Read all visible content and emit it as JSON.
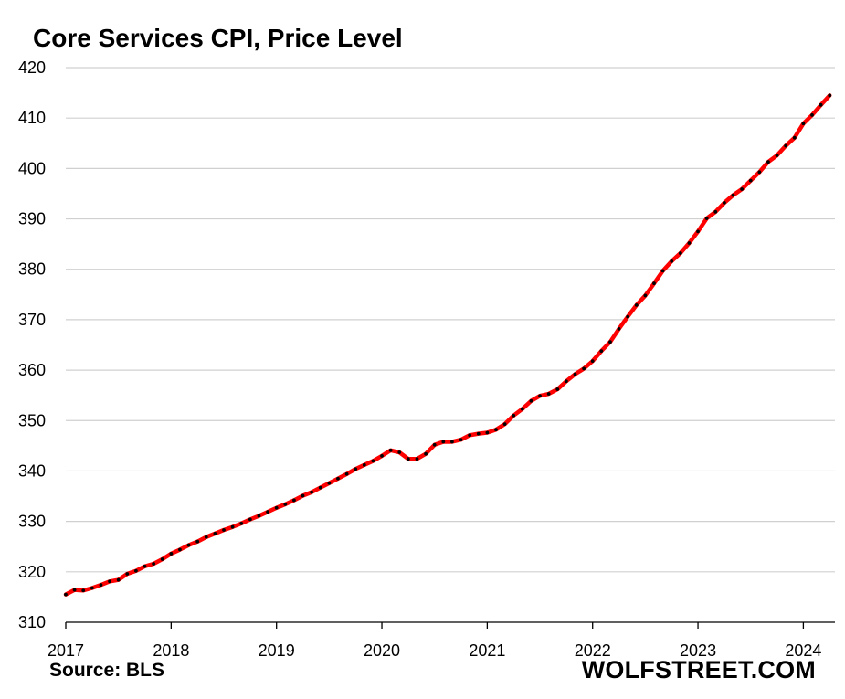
{
  "title": "Core Services CPI, Price Level",
  "source": "Source: BLS",
  "brand": "WOLFSTREET.COM",
  "colors": {
    "line": "#ff0000",
    "markers": "#000000",
    "grid": "#d0d0d0",
    "axis": "#000000"
  },
  "chart_data": {
    "type": "line",
    "title": "Core Services CPI, Price Level",
    "xlabel": "",
    "ylabel": "",
    "ylim": [
      310,
      420
    ],
    "xlim": [
      2017.0,
      2024.3
    ],
    "y_ticks": [
      310,
      320,
      330,
      340,
      350,
      360,
      370,
      380,
      390,
      400,
      410,
      420
    ],
    "x_ticks": [
      "2017",
      "2018",
      "2019",
      "2020",
      "2021",
      "2022",
      "2023",
      "2024"
    ],
    "grid": true,
    "legend": "none",
    "series": [
      {
        "frequency": "monthly",
        "start": "2017-01",
        "values": [
          315.5,
          316.4,
          316.3,
          316.8,
          317.4,
          318.1,
          318.4,
          319.6,
          320.2,
          321.1,
          321.6,
          322.5,
          323.6,
          324.4,
          325.3,
          326.0,
          326.9,
          327.6,
          328.3,
          328.9,
          329.6,
          330.4,
          331.1,
          331.9,
          332.7,
          333.4,
          334.2,
          335.1,
          335.8,
          336.7,
          337.6,
          338.5,
          339.4,
          340.4,
          341.2,
          342.0,
          343.0,
          344.1,
          343.7,
          342.4,
          342.4,
          343.4,
          345.2,
          345.8,
          345.8,
          346.2,
          347.1,
          347.4,
          347.6,
          348.2,
          349.3,
          351.0,
          352.3,
          353.9,
          354.9,
          355.3,
          356.2,
          357.8,
          359.2,
          360.3,
          361.8,
          363.8,
          365.6,
          368.2,
          370.6,
          372.9,
          374.8,
          377.2,
          379.7,
          381.6,
          383.2,
          385.2,
          387.5,
          390.1,
          391.4,
          393.2,
          394.7,
          395.9,
          397.6,
          399.3,
          401.3,
          402.6,
          404.5,
          406.1,
          408.9,
          410.6,
          412.6,
          414.5
        ]
      }
    ]
  }
}
